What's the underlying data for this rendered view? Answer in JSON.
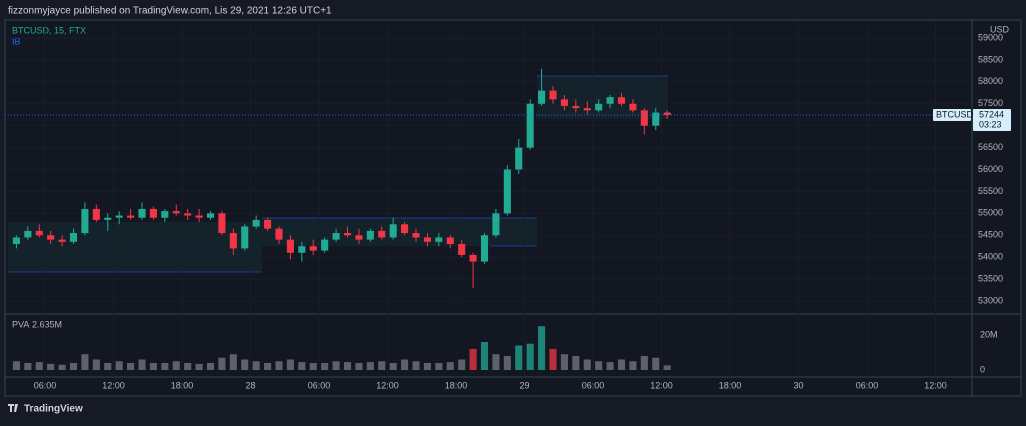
{
  "header": {
    "text": "fizzonmyjayce published on TradingView.com, Lis 29, 2021 12:26 UTC+1"
  },
  "chart_data": {
    "type": "candlestick",
    "symbol_label": "BTCUSD, 15, FTX",
    "indicator": "IB",
    "currency": "USD",
    "up_color": "#22ab94",
    "down_color": "#f23645",
    "x": [
      3,
      4,
      5,
      6,
      7,
      8,
      9,
      10,
      11,
      12,
      13,
      14,
      15,
      16,
      17,
      18,
      19,
      20,
      21,
      22,
      23,
      24,
      25,
      26,
      27,
      28,
      29,
      30,
      31,
      32,
      33,
      34,
      35,
      36,
      37,
      38,
      39,
      40,
      41,
      42,
      43,
      44,
      45,
      46,
      47,
      48,
      49,
      50,
      51,
      52,
      53,
      54,
      55,
      56,
      57,
      58,
      59,
      60
    ],
    "open": [
      54300,
      54450,
      54600,
      54500,
      54400,
      54350,
      54550,
      55100,
      54850,
      54900,
      54950,
      54900,
      55100,
      54900,
      55050,
      55000,
      54950,
      54900,
      55000,
      54550,
      54200,
      54700,
      54850,
      54650,
      54400,
      54100,
      54250,
      54150,
      54400,
      54550,
      54500,
      54400,
      54600,
      54450,
      54750,
      54550,
      54450,
      54350,
      54450,
      54300,
      54050,
      53900,
      54500,
      55000,
      56000,
      56500,
      57500,
      57800,
      57600,
      57450,
      57400,
      57350,
      57500,
      57650,
      57500,
      57350,
      57000,
      57300
    ],
    "high": [
      54500,
      54700,
      54750,
      54600,
      54500,
      54650,
      55250,
      55200,
      55000,
      55050,
      55100,
      55250,
      55150,
      55100,
      55200,
      55100,
      55100,
      55050,
      55050,
      54650,
      54750,
      54950,
      54900,
      54700,
      54500,
      54350,
      54400,
      54450,
      54650,
      54700,
      54650,
      54650,
      54700,
      54900,
      54800,
      54650,
      54550,
      54550,
      54500,
      54400,
      54100,
      54550,
      55100,
      56100,
      56700,
      57600,
      58300,
      57900,
      57700,
      57600,
      57550,
      57600,
      57700,
      57750,
      57600,
      57400,
      57400,
      57350
    ],
    "low": [
      54200,
      54400,
      54450,
      54300,
      54250,
      54300,
      54500,
      54800,
      54600,
      54750,
      54850,
      54850,
      54850,
      54800,
      54950,
      54850,
      54800,
      54850,
      54500,
      54050,
      54150,
      54650,
      54600,
      54300,
      53950,
      53900,
      54050,
      54100,
      54350,
      54450,
      54300,
      54350,
      54400,
      54400,
      54500,
      54350,
      54250,
      54250,
      54200,
      54000,
      53300,
      53850,
      54450,
      54950,
      55900,
      56450,
      57450,
      57500,
      57350,
      57300,
      57250,
      57300,
      57400,
      57450,
      57300,
      56800,
      56900,
      57150
    ],
    "close": [
      54450,
      54600,
      54500,
      54400,
      54350,
      54550,
      55100,
      54850,
      54900,
      54950,
      54900,
      55100,
      54900,
      55050,
      55000,
      54950,
      54900,
      55000,
      54550,
      54200,
      54700,
      54850,
      54650,
      54400,
      54100,
      54250,
      54150,
      54400,
      54550,
      54500,
      54400,
      54600,
      54450,
      54750,
      54550,
      54450,
      54350,
      54450,
      54300,
      54050,
      53900,
      54500,
      55000,
      56000,
      56500,
      57500,
      57800,
      57600,
      57450,
      57400,
      57350,
      57500,
      57650,
      57500,
      57350,
      57000,
      57300,
      57244
    ],
    "xlim": [
      2.5,
      87.2
    ],
    "xticks": [
      {
        "value": 6,
        "label": "06:00"
      },
      {
        "value": 12,
        "label": "12:00"
      },
      {
        "value": 18,
        "label": "18:00"
      },
      {
        "value": 24,
        "label": "28"
      },
      {
        "value": 30,
        "label": "06:00"
      },
      {
        "value": 36,
        "label": "12:00"
      },
      {
        "value": 42,
        "label": "18:00"
      },
      {
        "value": 48,
        "label": "29"
      },
      {
        "value": 54,
        "label": "06:00"
      },
      {
        "value": 60,
        "label": "12:00"
      },
      {
        "value": 66,
        "label": "18:00"
      },
      {
        "value": 72,
        "label": "30"
      },
      {
        "value": 78,
        "label": "06:00"
      },
      {
        "value": 84,
        "label": "12:00"
      }
    ],
    "ylim": [
      52726,
      59411
    ],
    "yticks": [
      53000,
      53500,
      54000,
      54500,
      55000,
      55500,
      56000,
      56500,
      57000,
      57500,
      58000,
      58500,
      59000
    ],
    "last_price_symbol": "BTCUSD",
    "last_price": 57244,
    "countdown": "03:23",
    "volume": {
      "name": "PVA",
      "color": "#787b86",
      "last_label": "2.635M",
      "values": [
        5000000,
        4000000,
        4500000,
        3500000,
        3000000,
        4000000,
        9000000,
        6000000,
        4000000,
        5000000,
        4000000,
        6000000,
        4000000,
        4000000,
        5000000,
        4000000,
        3500000,
        4000000,
        7000000,
        9000000,
        6000000,
        5000000,
        4000000,
        5000000,
        6000000,
        4500000,
        4000000,
        4000000,
        5000000,
        4500000,
        4000000,
        4500000,
        5000000,
        4000000,
        6000000,
        5000000,
        4000000,
        4000000,
        4500000,
        6000000,
        12000000,
        16000000,
        9000000,
        8000000,
        14000000,
        15000000,
        25000000,
        12000000,
        9000000,
        8000000,
        6000000,
        5000000,
        4500000,
        6000000,
        5000000,
        8000000,
        7000000,
        2635000
      ],
      "ylim": [
        -4000000,
        31400000
      ],
      "yticks": [
        0,
        {
          "value": 20000000,
          "label": "20M"
        }
      ]
    }
  },
  "footer": {
    "brand": "TradingView"
  }
}
